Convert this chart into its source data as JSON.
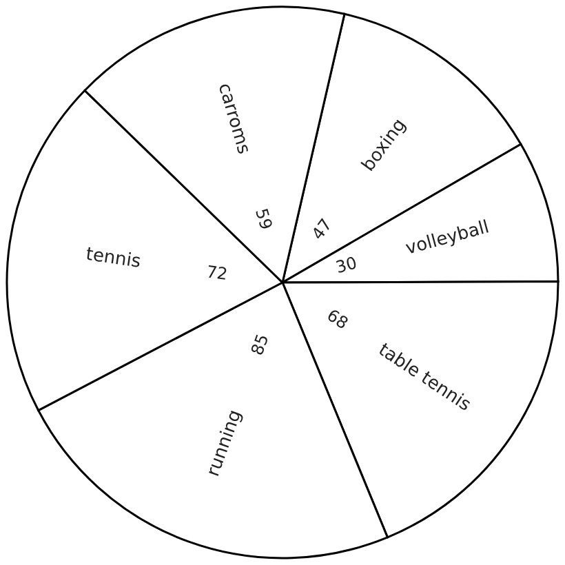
{
  "chart_data": {
    "type": "pie",
    "categories": [
      "boxing",
      "volleyball",
      "table tennis",
      "running",
      "tennis",
      "carroms"
    ],
    "values": [
      47,
      30,
      68,
      85,
      72,
      59
    ],
    "colors": [
      "#ffffff",
      "#ffffff",
      "#ffffff",
      "#ffffff",
      "#ffffff",
      "#ffffff"
    ],
    "data_labels": true
  }
}
